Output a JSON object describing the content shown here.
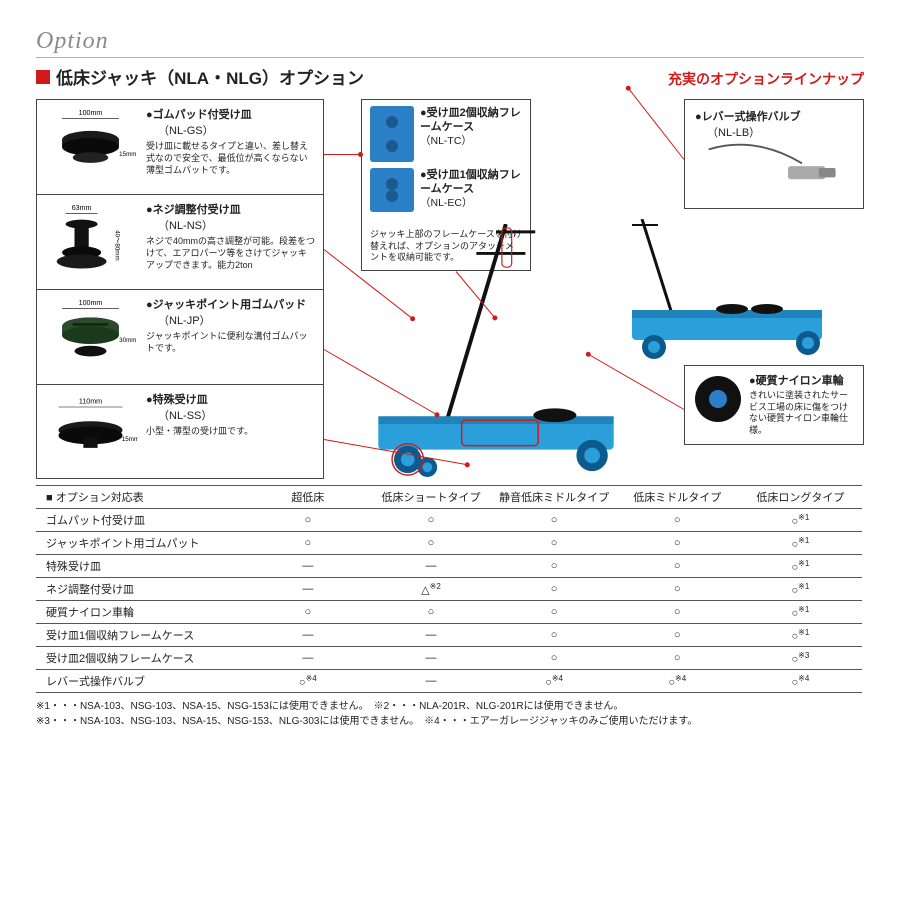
{
  "header": {
    "option_label": "Option",
    "title": "低床ジャッキ（NLA・NLG）オプション",
    "subtitle": "充実のオプションラインナップ"
  },
  "left_panel": [
    {
      "head": "ゴムパッド付受け皿",
      "code": "（NL-GS）",
      "desc": "受け皿に載せるタイプと違い、差し替え式なので安全で、最低位が高くならない薄型ゴムパットです。",
      "dim_w": "100mm",
      "dim_h": "15mm"
    },
    {
      "head": "ネジ調整付受け皿",
      "code": "（NL-NS）",
      "desc": "ネジで40mmの高さ調整が可能。段差をつけて、エアロパーツ等をさけてジャッキアップできます。能力2ton",
      "dim_w": "63mm",
      "dim_h": "40～80mm"
    },
    {
      "head": "ジャッキポイント用ゴムパッド",
      "code": "（NL-JP）",
      "desc": "ジャッキポイントに便利な溝付ゴムパットです。",
      "dim_w": "100mm",
      "dim_h": "30mm"
    },
    {
      "head": "特殊受け皿",
      "code": "（NL-SS）",
      "desc": "小型・薄型の受け皿です。",
      "dim_w": "110mm",
      "dim_h": "15mm"
    }
  ],
  "mid_panel": {
    "items": [
      {
        "head": "受け皿2個収納フレームケース",
        "code": "（NL-TC）"
      },
      {
        "head": "受け皿1個収納フレームケース",
        "code": "（NL-EC）"
      }
    ],
    "note": "ジャッキ上部のフレームケースを付け替えれば、オプションのアタッチメントを収納可能です。"
  },
  "top_right": {
    "head": "レバー式操作バルブ",
    "code": "（NL-LB）"
  },
  "bot_right": {
    "head": "硬質ナイロン車輪",
    "desc": "きれいに塗装されたサービス工場の床に傷をつけない硬質ナイロン車輪仕様。"
  },
  "table": {
    "header": [
      "オプション対応表",
      "超低床",
      "低床ショートタイプ",
      "静音低床ミドルタイプ",
      "低床ミドルタイプ",
      "低床ロングタイプ"
    ],
    "rows": [
      [
        "ゴムパット付受け皿",
        "○",
        "○",
        "○",
        "○",
        "○※1"
      ],
      [
        "ジャッキポイント用ゴムパット",
        "○",
        "○",
        "○",
        "○",
        "○※1"
      ],
      [
        "特殊受け皿",
        "―",
        "―",
        "○",
        "○",
        "○※1"
      ],
      [
        "ネジ調整付受け皿",
        "―",
        "△※2",
        "○",
        "○",
        "○※1"
      ],
      [
        "硬質ナイロン車輪",
        "○",
        "○",
        "○",
        "○",
        "○※1"
      ],
      [
        "受け皿1個収納フレームケース",
        "―",
        "―",
        "○",
        "○",
        "○※1"
      ],
      [
        "受け皿2個収納フレームケース",
        "―",
        "―",
        "○",
        "○",
        "○※3"
      ],
      [
        "レバー式操作バルブ",
        "○※4",
        "―",
        "○※4",
        "○※4",
        "○※4"
      ]
    ]
  },
  "footnotes": [
    "※1・・・NSA-103、NSG-103、NSA-15、NSG-153には使用できません。　※2・・・NLA-201R、NLG-201Rには使用できません。",
    "※3・・・NSA-103、NSG-103、NSA-15、NSG-153、NLG-303には使用できません。　※4・・・エアーガレージジャッキのみご使用いただけます。"
  ],
  "colors": {
    "accent": "#d11a1a",
    "jack_blue": "#2b9fd9",
    "jack_dark": "#0c5a8e"
  }
}
